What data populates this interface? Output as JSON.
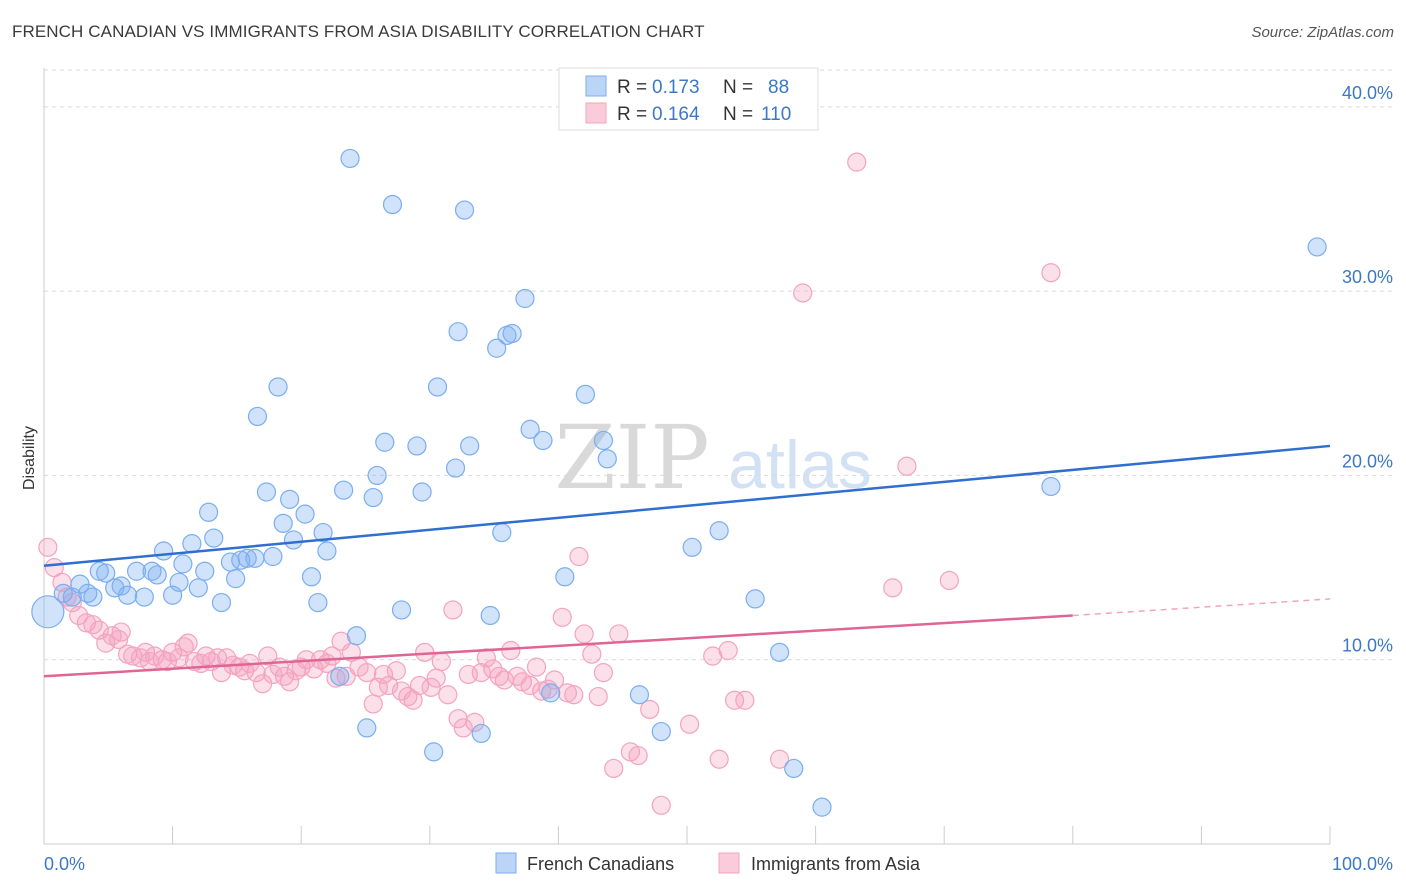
{
  "header": {
    "title": "FRENCH CANADIAN VS IMMIGRANTS FROM ASIA DISABILITY CORRELATION CHART",
    "source": "Source: ZipAtlas.com"
  },
  "watermark": {
    "zip": "ZIP",
    "atlas": "atlas"
  },
  "legend": {
    "rows": [
      {
        "r_label": "R =",
        "r_value": "0.173",
        "n_label": "N =",
        "n_value": "88"
      },
      {
        "r_label": "R =",
        "r_value": "0.164",
        "n_label": "N =",
        "n_value": "110"
      }
    ]
  },
  "bottom_legend": {
    "series1": "French Canadians",
    "series2": "Immigrants from Asia"
  },
  "chart_data": {
    "type": "scatter",
    "title": "FRENCH CANADIAN VS IMMIGRANTS FROM ASIA DISABILITY CORRELATION CHART",
    "xlabel": "",
    "ylabel": "Disability",
    "xlim": [
      0,
      100
    ],
    "ylim": [
      0,
      42
    ],
    "x_tick_labels": [
      "0.0%",
      "100.0%"
    ],
    "y_ticks": [
      10,
      20,
      30,
      40
    ],
    "y_tick_labels": [
      "10.0%",
      "20.0%",
      "30.0%",
      "40.0%"
    ],
    "grid": true,
    "legend_position": "top-center",
    "colors": {
      "series1": "#7aaef0",
      "series1_line": "#2f6fcf",
      "series2": "#f4a3bf",
      "series2_line": "#e06595",
      "tick_text": "#3b78c6"
    },
    "series": [
      {
        "name": "French Canadians",
        "R": 0.173,
        "N": 88,
        "trend": {
          "x": [
            0,
            100
          ],
          "y": [
            15.1,
            21.6
          ]
        },
        "points": [
          {
            "x": 0.3,
            "y": 12.6,
            "big": true
          },
          {
            "x": 1.5,
            "y": 13.6
          },
          {
            "x": 2.2,
            "y": 13.4
          },
          {
            "x": 2.8,
            "y": 14.1
          },
          {
            "x": 3.4,
            "y": 13.6
          },
          {
            "x": 3.8,
            "y": 13.4
          },
          {
            "x": 4.3,
            "y": 14.8
          },
          {
            "x": 4.8,
            "y": 14.7
          },
          {
            "x": 5.5,
            "y": 13.9
          },
          {
            "x": 6.0,
            "y": 14.0
          },
          {
            "x": 6.5,
            "y": 13.5
          },
          {
            "x": 7.2,
            "y": 14.8
          },
          {
            "x": 7.8,
            "y": 13.4
          },
          {
            "x": 8.4,
            "y": 14.8
          },
          {
            "x": 8.8,
            "y": 14.6
          },
          {
            "x": 9.3,
            "y": 15.9
          },
          {
            "x": 10.0,
            "y": 13.5
          },
          {
            "x": 10.5,
            "y": 14.2
          },
          {
            "x": 10.8,
            "y": 15.2
          },
          {
            "x": 11.5,
            "y": 16.3
          },
          {
            "x": 12.0,
            "y": 13.9
          },
          {
            "x": 12.5,
            "y": 14.8
          },
          {
            "x": 12.8,
            "y": 18.0
          },
          {
            "x": 13.2,
            "y": 16.6
          },
          {
            "x": 13.8,
            "y": 13.1
          },
          {
            "x": 14.5,
            "y": 15.3
          },
          {
            "x": 14.9,
            "y": 14.4
          },
          {
            "x": 15.3,
            "y": 15.4
          },
          {
            "x": 15.8,
            "y": 15.5
          },
          {
            "x": 16.4,
            "y": 15.5
          },
          {
            "x": 16.6,
            "y": 23.2
          },
          {
            "x": 17.3,
            "y": 19.1
          },
          {
            "x": 17.8,
            "y": 15.6
          },
          {
            "x": 18.2,
            "y": 24.8
          },
          {
            "x": 18.6,
            "y": 17.4
          },
          {
            "x": 19.1,
            "y": 18.7
          },
          {
            "x": 19.4,
            "y": 16.5
          },
          {
            "x": 20.3,
            "y": 17.9
          },
          {
            "x": 20.8,
            "y": 14.5
          },
          {
            "x": 21.3,
            "y": 13.1
          },
          {
            "x": 21.7,
            "y": 16.9
          },
          {
            "x": 22.0,
            "y": 15.9
          },
          {
            "x": 23.0,
            "y": 9.1
          },
          {
            "x": 23.3,
            "y": 19.2
          },
          {
            "x": 23.8,
            "y": 37.2
          },
          {
            "x": 24.3,
            "y": 11.3
          },
          {
            "x": 25.1,
            "y": 6.3
          },
          {
            "x": 25.6,
            "y": 18.8
          },
          {
            "x": 25.9,
            "y": 20.0
          },
          {
            "x": 26.5,
            "y": 21.8
          },
          {
            "x": 27.1,
            "y": 34.7
          },
          {
            "x": 27.8,
            "y": 12.7
          },
          {
            "x": 29.0,
            "y": 21.6
          },
          {
            "x": 29.4,
            "y": 19.1
          },
          {
            "x": 30.3,
            "y": 5.0
          },
          {
            "x": 30.6,
            "y": 24.8
          },
          {
            "x": 32.0,
            "y": 20.4
          },
          {
            "x": 32.2,
            "y": 27.8
          },
          {
            "x": 32.7,
            "y": 34.4
          },
          {
            "x": 33.1,
            "y": 21.6
          },
          {
            "x": 34.0,
            "y": 6.0
          },
          {
            "x": 34.7,
            "y": 12.4
          },
          {
            "x": 35.2,
            "y": 26.9
          },
          {
            "x": 35.6,
            "y": 16.9
          },
          {
            "x": 36.0,
            "y": 27.6
          },
          {
            "x": 36.4,
            "y": 27.7
          },
          {
            "x": 37.4,
            "y": 29.6
          },
          {
            "x": 37.8,
            "y": 22.5
          },
          {
            "x": 38.8,
            "y": 21.9
          },
          {
            "x": 39.4,
            "y": 8.2
          },
          {
            "x": 40.5,
            "y": 14.5
          },
          {
            "x": 42.1,
            "y": 24.4
          },
          {
            "x": 43.5,
            "y": 21.9
          },
          {
            "x": 43.8,
            "y": 20.9
          },
          {
            "x": 46.3,
            "y": 8.1
          },
          {
            "x": 48.0,
            "y": 6.1
          },
          {
            "x": 50.4,
            "y": 16.1
          },
          {
            "x": 52.5,
            "y": 17.0
          },
          {
            "x": 55.3,
            "y": 13.3
          },
          {
            "x": 57.2,
            "y": 10.4
          },
          {
            "x": 58.3,
            "y": 4.1
          },
          {
            "x": 60.5,
            "y": 2.0
          },
          {
            "x": 78.3,
            "y": 19.4
          },
          {
            "x": 99.0,
            "y": 32.4
          }
        ]
      },
      {
        "name": "Immigrants from Asia",
        "R": 0.164,
        "N": 110,
        "trend": {
          "x": [
            0,
            80
          ],
          "y": [
            9.1,
            12.4
          ]
        },
        "trend_dashed": {
          "x": [
            80,
            100
          ],
          "y": [
            12.4,
            13.3
          ]
        },
        "points": [
          {
            "x": 0.3,
            "y": 16.1
          },
          {
            "x": 0.8,
            "y": 15.0
          },
          {
            "x": 1.4,
            "y": 14.2
          },
          {
            "x": 1.8,
            "y": 13.4
          },
          {
            "x": 2.2,
            "y": 13.1
          },
          {
            "x": 2.7,
            "y": 12.4
          },
          {
            "x": 3.3,
            "y": 12.0
          },
          {
            "x": 3.8,
            "y": 11.9
          },
          {
            "x": 4.3,
            "y": 11.6
          },
          {
            "x": 4.8,
            "y": 10.9
          },
          {
            "x": 5.3,
            "y": 11.3
          },
          {
            "x": 5.8,
            "y": 11.1
          },
          {
            "x": 6.0,
            "y": 11.5
          },
          {
            "x": 6.5,
            "y": 10.3
          },
          {
            "x": 6.9,
            "y": 10.2
          },
          {
            "x": 7.5,
            "y": 10.1
          },
          {
            "x": 7.9,
            "y": 10.4
          },
          {
            "x": 8.2,
            "y": 9.9
          },
          {
            "x": 8.6,
            "y": 10.2
          },
          {
            "x": 9.2,
            "y": 10.0
          },
          {
            "x": 9.6,
            "y": 9.9
          },
          {
            "x": 10.0,
            "y": 10.4
          },
          {
            "x": 10.5,
            "y": 10.1
          },
          {
            "x": 10.9,
            "y": 10.7
          },
          {
            "x": 11.2,
            "y": 10.9
          },
          {
            "x": 11.7,
            "y": 9.9
          },
          {
            "x": 12.2,
            "y": 9.8
          },
          {
            "x": 12.6,
            "y": 10.2
          },
          {
            "x": 13.0,
            "y": 9.9
          },
          {
            "x": 13.5,
            "y": 10.1
          },
          {
            "x": 13.8,
            "y": 9.3
          },
          {
            "x": 14.2,
            "y": 10.1
          },
          {
            "x": 14.7,
            "y": 9.7
          },
          {
            "x": 15.2,
            "y": 9.6
          },
          {
            "x": 15.6,
            "y": 9.4
          },
          {
            "x": 16.0,
            "y": 9.8
          },
          {
            "x": 16.5,
            "y": 9.3
          },
          {
            "x": 17.0,
            "y": 8.7
          },
          {
            "x": 17.4,
            "y": 10.2
          },
          {
            "x": 17.8,
            "y": 9.2
          },
          {
            "x": 18.3,
            "y": 9.6
          },
          {
            "x": 18.7,
            "y": 9.1
          },
          {
            "x": 19.1,
            "y": 8.8
          },
          {
            "x": 19.6,
            "y": 9.4
          },
          {
            "x": 20.0,
            "y": 9.6
          },
          {
            "x": 20.4,
            "y": 10.0
          },
          {
            "x": 21.0,
            "y": 9.5
          },
          {
            "x": 21.5,
            "y": 10.0
          },
          {
            "x": 22.0,
            "y": 9.8
          },
          {
            "x": 22.4,
            "y": 10.2
          },
          {
            "x": 22.7,
            "y": 9.0
          },
          {
            "x": 23.1,
            "y": 11.0
          },
          {
            "x": 23.5,
            "y": 9.1
          },
          {
            "x": 23.9,
            "y": 10.4
          },
          {
            "x": 24.5,
            "y": 9.6
          },
          {
            "x": 25.1,
            "y": 9.3
          },
          {
            "x": 25.6,
            "y": 7.6
          },
          {
            "x": 26.0,
            "y": 8.5
          },
          {
            "x": 26.4,
            "y": 9.2
          },
          {
            "x": 26.8,
            "y": 8.6
          },
          {
            "x": 27.4,
            "y": 9.4
          },
          {
            "x": 27.8,
            "y": 8.3
          },
          {
            "x": 28.3,
            "y": 8.0
          },
          {
            "x": 28.7,
            "y": 7.8
          },
          {
            "x": 29.2,
            "y": 8.6
          },
          {
            "x": 29.6,
            "y": 10.4
          },
          {
            "x": 30.1,
            "y": 8.5
          },
          {
            "x": 30.5,
            "y": 9.0
          },
          {
            "x": 30.9,
            "y": 9.9
          },
          {
            "x": 31.4,
            "y": 8.1
          },
          {
            "x": 31.8,
            "y": 12.7
          },
          {
            "x": 32.2,
            "y": 6.8
          },
          {
            "x": 32.6,
            "y": 6.3
          },
          {
            "x": 33.0,
            "y": 9.2
          },
          {
            "x": 33.5,
            "y": 6.6
          },
          {
            "x": 34.0,
            "y": 9.3
          },
          {
            "x": 34.4,
            "y": 10.1
          },
          {
            "x": 34.9,
            "y": 9.5
          },
          {
            "x": 35.4,
            "y": 9.1
          },
          {
            "x": 35.8,
            "y": 8.9
          },
          {
            "x": 36.3,
            "y": 10.5
          },
          {
            "x": 36.8,
            "y": 9.1
          },
          {
            "x": 37.2,
            "y": 8.8
          },
          {
            "x": 37.8,
            "y": 8.6
          },
          {
            "x": 38.3,
            "y": 9.6
          },
          {
            "x": 38.7,
            "y": 8.3
          },
          {
            "x": 39.2,
            "y": 8.4
          },
          {
            "x": 39.7,
            "y": 8.9
          },
          {
            "x": 40.3,
            "y": 12.3
          },
          {
            "x": 40.7,
            "y": 8.2
          },
          {
            "x": 41.2,
            "y": 8.1
          },
          {
            "x": 41.6,
            "y": 15.6
          },
          {
            "x": 42.0,
            "y": 11.4
          },
          {
            "x": 42.6,
            "y": 10.3
          },
          {
            "x": 43.1,
            "y": 8.0
          },
          {
            "x": 43.5,
            "y": 9.3
          },
          {
            "x": 44.3,
            "y": 4.1
          },
          {
            "x": 44.7,
            "y": 11.4
          },
          {
            "x": 45.6,
            "y": 5.0
          },
          {
            "x": 46.2,
            "y": 4.8
          },
          {
            "x": 47.1,
            "y": 7.3
          },
          {
            "x": 48.0,
            "y": 2.1
          },
          {
            "x": 50.2,
            "y": 6.5
          },
          {
            "x": 52.0,
            "y": 10.2
          },
          {
            "x": 52.5,
            "y": 4.6
          },
          {
            "x": 53.2,
            "y": 10.5
          },
          {
            "x": 53.7,
            "y": 7.8
          },
          {
            "x": 54.5,
            "y": 7.8
          },
          {
            "x": 57.2,
            "y": 4.6
          },
          {
            "x": 59.0,
            "y": 29.9
          },
          {
            "x": 63.2,
            "y": 37.0
          },
          {
            "x": 66.0,
            "y": 13.9
          },
          {
            "x": 67.1,
            "y": 20.5
          },
          {
            "x": 70.4,
            "y": 14.3
          },
          {
            "x": 78.3,
            "y": 31.0
          }
        ]
      }
    ]
  }
}
